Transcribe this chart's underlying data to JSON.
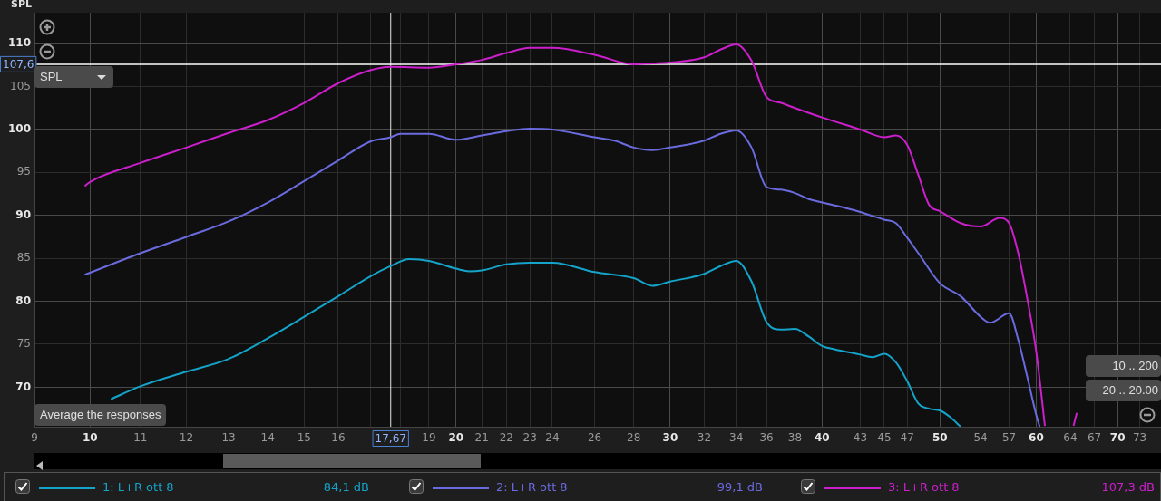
{
  "chart_data": {
    "type": "line",
    "ylabel": "SPL",
    "xlim": [
      9,
      76
    ],
    "ylim": [
      65.4,
      113.6
    ],
    "xticks": [
      9,
      10,
      11,
      12,
      13,
      14,
      15,
      16,
      {
        "value": 17,
        "label": null
      },
      {
        "value": 18,
        "label": null
      },
      19,
      20,
      21,
      22,
      23,
      24,
      26,
      28,
      30,
      32,
      34,
      36,
      38,
      40,
      43,
      45,
      47,
      50,
      54,
      57,
      60,
      64,
      67,
      70,
      73
    ],
    "yticks": [
      70,
      75,
      80,
      85,
      90,
      95,
      100,
      105,
      110
    ],
    "log": "x",
    "grid": true,
    "legend": "bottom",
    "marker": "none",
    "line_style": "solid",
    "series": [
      {
        "name": "1: L+R ott 8",
        "color": "#14a3c9",
        "x": [
          10.4,
          11,
          12,
          13,
          14,
          15,
          16,
          17,
          17.67,
          18.3,
          19,
          20,
          20.5,
          21,
          22,
          23,
          24,
          26,
          28,
          29,
          30,
          32,
          33,
          34,
          35,
          36,
          37,
          38,
          39,
          40,
          41,
          43,
          44,
          45,
          46,
          47,
          48,
          49,
          50,
          51,
          52
        ],
        "values": [
          68.6,
          70.1,
          71.8,
          73.3,
          75.7,
          78.2,
          80.6,
          82.9,
          84.1,
          84.9,
          84.7,
          83.8,
          83.5,
          83.6,
          84.3,
          84.5,
          84.5,
          83.4,
          82.7,
          81.8,
          82.3,
          83.2,
          84.1,
          84.7,
          82.3,
          77.6,
          76.7,
          76.8,
          75.9,
          74.8,
          74.4,
          73.8,
          73.5,
          73.9,
          72.9,
          70.7,
          68.1,
          67.5,
          67.3,
          66.5,
          65.4
        ]
      },
      {
        "name": "2: L+R ott 8",
        "color": "#6b6be0",
        "x": [
          9.9,
          11,
          12,
          13,
          14,
          15,
          16,
          17,
          17.67,
          18,
          19,
          20,
          21,
          22,
          23,
          24,
          26,
          27,
          28,
          29,
          30,
          32,
          33,
          34,
          35,
          36,
          37,
          38,
          39,
          40,
          42,
          43,
          45,
          46,
          47,
          48,
          50,
          52,
          54,
          55,
          57,
          58,
          59,
          60,
          60.4
        ],
        "values": [
          83.1,
          85.6,
          87.5,
          89.3,
          91.5,
          94.0,
          96.4,
          98.6,
          99.1,
          99.5,
          99.5,
          98.8,
          99.3,
          99.8,
          100.1,
          100.0,
          99.1,
          98.7,
          97.9,
          97.6,
          97.9,
          98.7,
          99.5,
          99.9,
          97.9,
          93.3,
          93.0,
          92.6,
          91.9,
          91.5,
          90.8,
          90.4,
          89.5,
          89.1,
          87.4,
          85.6,
          82.1,
          80.6,
          78.2,
          77.5,
          78.6,
          75.5,
          71.2,
          66.8,
          65.4
        ]
      },
      {
        "name": "3: L+R ott 8",
        "color": "#cc1fcc",
        "x": [
          9.9,
          10,
          11,
          12,
          13,
          14,
          15,
          16,
          17,
          17.67,
          19,
          20,
          21,
          22,
          23,
          24,
          26,
          28,
          29,
          30,
          32,
          33,
          34,
          35,
          36,
          37,
          38,
          40,
          43,
          45,
          46,
          47,
          48,
          49,
          50,
          52,
          54,
          56,
          57,
          58,
          59,
          60,
          61,
          62.5,
          64.4,
          64.8
        ],
        "values": [
          93.4,
          93.9,
          96.1,
          97.9,
          99.6,
          101.1,
          103.1,
          105.4,
          106.9,
          107.3,
          107.2,
          107.6,
          108.1,
          108.9,
          109.5,
          109.5,
          108.7,
          107.6,
          107.7,
          107.8,
          108.4,
          109.3,
          109.9,
          108.0,
          103.8,
          103.1,
          102.5,
          101.4,
          100.0,
          99.1,
          99.3,
          98.2,
          94.7,
          91.2,
          90.5,
          89.1,
          88.7,
          89.7,
          89.1,
          85.6,
          80.3,
          74.2,
          65.5,
          null,
          65.5,
          67.0
        ]
      }
    ],
    "ref_lines": [
      {
        "axis": "x",
        "value": 17.67,
        "label": "17,67",
        "color": "#e6e6e6"
      },
      {
        "axis": "y",
        "value": 107.6,
        "label": "107,6",
        "color": "#ffffff"
      }
    ],
    "annotations": [
      "84,1 dB",
      "99,1 dB",
      "107,3 dB",
      "SPL",
      "Average the responses",
      "10 .. 200",
      "20 .. 20.00"
    ]
  }
}
